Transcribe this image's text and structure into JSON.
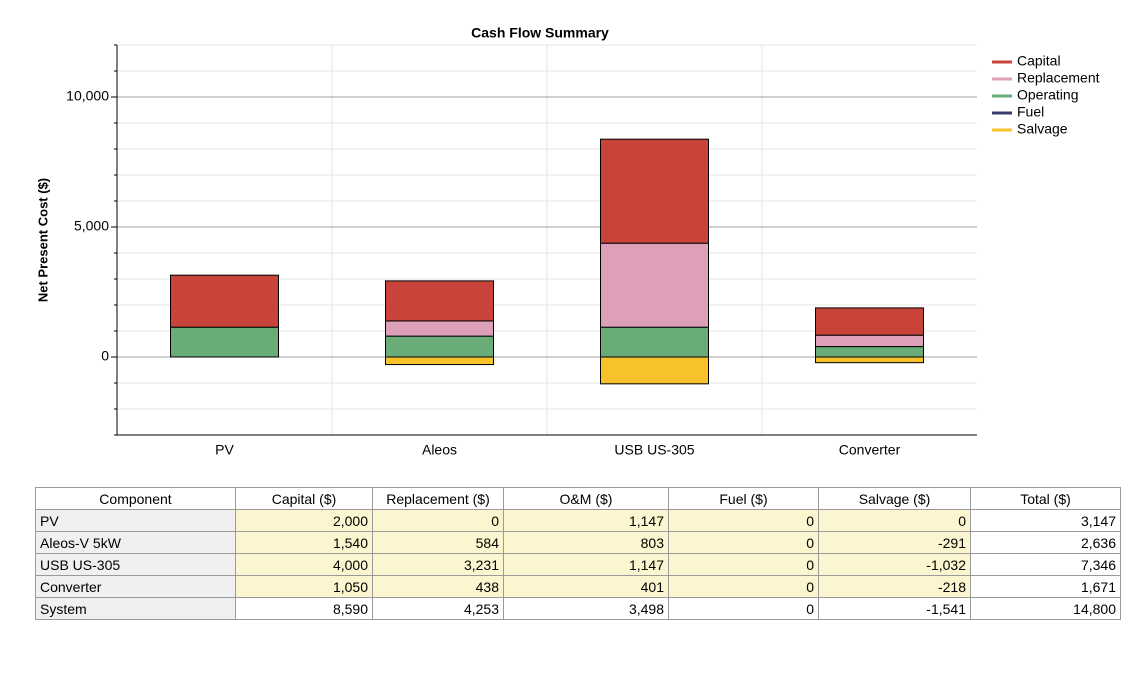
{
  "chart_data": {
    "type": "bar",
    "stacked": true,
    "title": "Cash Flow Summary",
    "ylabel": "Net Present Cost ($)",
    "categories": [
      "PV",
      "Aleos",
      "USB US-305",
      "Converter"
    ],
    "series": [
      {
        "name": "Capital",
        "color": "#c8443a",
        "values": [
          2000,
          1540,
          4000,
          1050
        ]
      },
      {
        "name": "Replacement",
        "color": "#dea0b9",
        "values": [
          0,
          584,
          3231,
          438
        ]
      },
      {
        "name": "Operating",
        "color": "#69ac78",
        "values": [
          1147,
          803,
          1147,
          401
        ]
      },
      {
        "name": "Fuel",
        "color": "#353b6c",
        "values": [
          0,
          0,
          0,
          0
        ]
      },
      {
        "name": "Salvage",
        "color": "#f8c22c",
        "values": [
          0,
          -291,
          -1032,
          -218
        ]
      }
    ],
    "ylim": [
      -3000,
      12000
    ],
    "yticks": [
      {
        "value": 10000,
        "label": "10,000"
      },
      {
        "value": 5000,
        "label": "5,000"
      },
      0
    ],
    "yminorticks": [
      -3000,
      -2000,
      -1000,
      1000,
      2000,
      3000,
      4000,
      6000,
      7000,
      8000,
      9000,
      11000,
      12000
    ],
    "grid": true,
    "legend": "right"
  },
  "table": {
    "header": [
      "Component",
      "Capital ($)",
      "Replacement ($)",
      "O&M ($)",
      "Fuel ($)",
      "Salvage ($)",
      "Total ($)"
    ],
    "rows": [
      [
        "PV",
        "2,000",
        "0",
        "1,147",
        "0",
        "0",
        "3,147"
      ],
      [
        "Aleos-V 5kW",
        "1,540",
        "584",
        "803",
        "0",
        "-291",
        "2,636"
      ],
      [
        "USB US-305",
        "4,000",
        "3,231",
        "1,147",
        "0",
        "-1,032",
        "7,346"
      ],
      [
        "Converter",
        "1,050",
        "438",
        "401",
        "0",
        "-218",
        "1,671"
      ],
      [
        "System",
        "8,590",
        "4,253",
        "3,498",
        "0",
        "-1,541",
        "14,800"
      ]
    ]
  }
}
